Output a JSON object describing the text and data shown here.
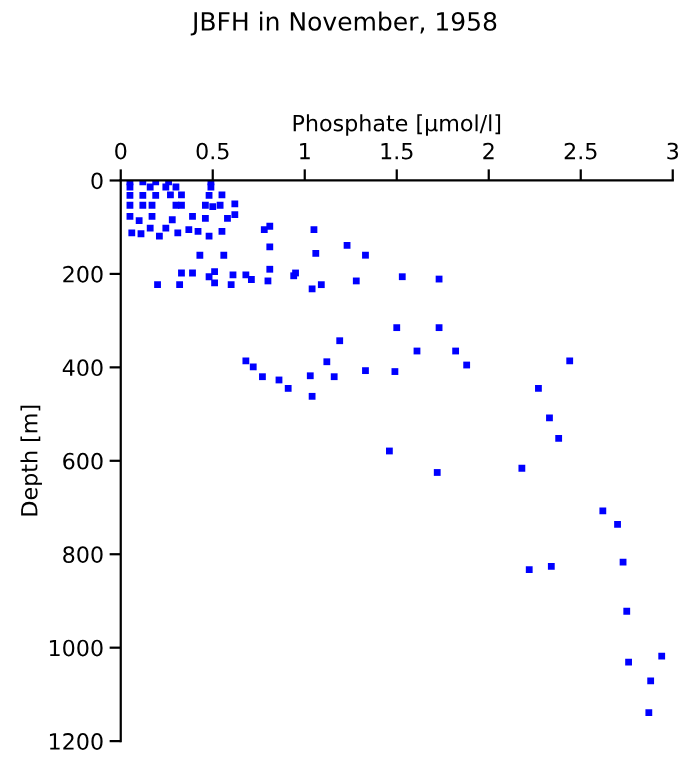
{
  "chart_data": {
    "type": "scatter",
    "title": "JBFH in November, 1958",
    "xlabel": "Phosphate [μmol/l]",
    "ylabel": "Depth [m]",
    "xlim": [
      0,
      3
    ],
    "xticks": [
      0,
      0.5,
      1,
      1.5,
      2,
      2.5,
      3
    ],
    "ylim": [
      1200,
      0
    ],
    "yticks": [
      0,
      200,
      400,
      600,
      800,
      1000,
      1200
    ],
    "grid": false,
    "legend": false,
    "marker": "square",
    "series": [
      {
        "color": "#0000ff",
        "x": [
          0.05,
          0.12,
          0.19,
          0.26,
          0.49,
          0.05,
          0.16,
          0.245,
          0.3,
          0.49,
          0.05,
          0.12,
          0.19,
          0.27,
          0.33,
          0.48,
          0.55,
          0.05,
          0.12,
          0.17,
          0.3,
          0.33,
          0.46,
          0.5,
          0.54,
          0.62,
          0.05,
          0.1,
          0.17,
          0.28,
          0.39,
          0.46,
          0.58,
          0.62,
          0.06,
          0.11,
          0.16,
          0.21,
          0.245,
          0.31,
          0.37,
          0.42,
          0.48,
          0.55,
          0.43,
          0.56,
          0.78,
          0.81,
          1.05,
          0.81,
          1.06,
          1.23,
          1.33,
          0.2,
          0.32,
          0.33,
          0.39,
          0.48,
          0.51,
          0.51,
          0.61,
          0.6,
          0.68,
          0.71,
          0.8,
          0.81,
          0.94,
          0.95,
          1.04,
          1.09,
          1.28,
          0.68,
          0.72,
          0.77,
          0.86,
          0.91,
          1.03,
          1.04,
          1.12,
          1.16,
          1.19,
          1.33,
          1.53,
          1.73,
          1.5,
          1.73,
          1.61,
          1.82,
          1.88,
          2.44,
          1.49,
          2.27,
          2.33,
          2.38,
          1.46,
          1.72,
          2.18,
          2.62,
          2.7,
          2.22,
          2.34,
          2.73,
          2.75,
          2.76,
          2.94,
          2.88,
          2.87
        ],
        "values": [
          3,
          3,
          3,
          3,
          3,
          14,
          14,
          14,
          14,
          14,
          32,
          32,
          32,
          31,
          31,
          32,
          31,
          53,
          53,
          53,
          53,
          53,
          53,
          56,
          53,
          50,
          77,
          86,
          77,
          84,
          77,
          81,
          81,
          73,
          112,
          114,
          102,
          119,
          102,
          112,
          105,
          109,
          119,
          109,
          160,
          160,
          105,
          98,
          105,
          142,
          156,
          139,
          160,
          223,
          223,
          198,
          198,
          206,
          195,
          219,
          202,
          223,
          202,
          212,
          215,
          190,
          204,
          198,
          232,
          223,
          215,
          386,
          399,
          420,
          427,
          445,
          418,
          462,
          388,
          420,
          343,
          407,
          206,
          211,
          315,
          315,
          365,
          365,
          395,
          386,
          409,
          445,
          508,
          552,
          579,
          625,
          616,
          707,
          736,
          833,
          826,
          817,
          922,
          1031,
          1018,
          1071,
          1139
        ]
      }
    ]
  }
}
